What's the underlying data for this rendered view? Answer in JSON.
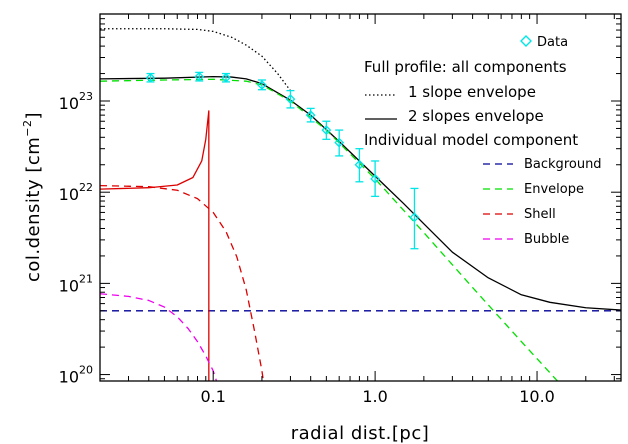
{
  "chart_data": {
    "type": "line",
    "xlabel": "radial dist.",
    "xlabel_unit": "[pc]",
    "ylabel": "col.density",
    "ylabel_unit": "[cm",
    "ylabel_unit_exp": "−2",
    "ylabel_unit_close": "]",
    "x_scale": "log",
    "y_scale": "log",
    "xlim": [
      0.02,
      33
    ],
    "ylim": [
      8.5e+19,
      9e+23
    ],
    "x_ticks": [
      {
        "value": 0.1,
        "label": "0.1"
      },
      {
        "value": 1.0,
        "label": "1.0"
      },
      {
        "value": 10.0,
        "label": "10.0"
      }
    ],
    "y_ticks": [
      {
        "value": 1e+20,
        "base": "10",
        "exp": "20"
      },
      {
        "value": 1e+21,
        "base": "10",
        "exp": "21"
      },
      {
        "value": 1e+22,
        "base": "10",
        "exp": "22"
      },
      {
        "value": 1e+23,
        "base": "10",
        "exp": "23"
      }
    ],
    "legend": {
      "placement": "top-right",
      "data_label": "Data",
      "full_profile_header": "Full profile: all components",
      "one_slope_label": "1 slope envelope",
      "two_slope_label": "2 slopes envelope",
      "components_header": "Individual model component",
      "background_label": "Background",
      "envelope_label": "Envelope",
      "shell_label": "Shell",
      "bubble_label": "Bubble"
    },
    "series": [
      {
        "name": "Data",
        "color": "#00e5e5",
        "marker": "diamond",
        "points": [
          {
            "x": 0.041,
            "y": 1.8e+23,
            "yerr_lo": 1.62e+23,
            "yerr_hi": 2e+23
          },
          {
            "x": 0.082,
            "y": 1.85e+23,
            "yerr_lo": 1.66e+23,
            "yerr_hi": 2.06e+23
          },
          {
            "x": 0.12,
            "y": 1.8e+23,
            "yerr_lo": 1.62e+23,
            "yerr_hi": 2e+23
          },
          {
            "x": 0.2,
            "y": 1.5e+23,
            "yerr_lo": 1.33e+23,
            "yerr_hi": 1.7e+23
          },
          {
            "x": 0.3,
            "y": 1.05e+23,
            "yerr_lo": 8.4e+22,
            "yerr_hi": 1.3e+23
          },
          {
            "x": 0.4,
            "y": 7e+22,
            "yerr_lo": 5.9e+22,
            "yerr_hi": 8.3e+22
          },
          {
            "x": 0.5,
            "y": 4.8e+22,
            "yerr_lo": 3.8e+22,
            "yerr_hi": 6e+22
          },
          {
            "x": 0.6,
            "y": 3.5e+22,
            "yerr_lo": 2.5e+22,
            "yerr_hi": 4.8e+22
          },
          {
            "x": 0.8,
            "y": 2e+22,
            "yerr_lo": 1.3e+22,
            "yerr_hi": 3e+22
          },
          {
            "x": 1.0,
            "y": 1.4e+22,
            "yerr_lo": 9e+21,
            "yerr_hi": 2.2e+22
          },
          {
            "x": 1.75,
            "y": 5.3e+21,
            "yerr_lo": 2.4e+21,
            "yerr_hi": 1.1e+22
          }
        ]
      },
      {
        "name": "1 slope envelope",
        "color": "#000000",
        "dash": "dotted",
        "points": [
          [
            0.02,
            6.2e+23
          ],
          [
            0.05,
            6.2e+23
          ],
          [
            0.08,
            6.1e+23
          ],
          [
            0.1,
            5.8e+23
          ],
          [
            0.13,
            5e+23
          ],
          [
            0.16,
            4.1e+23
          ],
          [
            0.2,
            3.1e+23
          ],
          [
            0.25,
            2e+23
          ],
          [
            0.3,
            1.3e+23
          ]
        ]
      },
      {
        "name": "2 slopes envelope",
        "color": "#000000",
        "dash": "solid",
        "points": [
          [
            0.02,
            1.75e+23
          ],
          [
            0.05,
            1.78e+23
          ],
          [
            0.1,
            1.85e+23
          ],
          [
            0.13,
            1.83e+23
          ],
          [
            0.16,
            1.75e+23
          ],
          [
            0.2,
            1.55e+23
          ],
          [
            0.3,
            1.02e+23
          ],
          [
            0.4,
            7e+22
          ],
          [
            0.6,
            3.6e+22
          ],
          [
            0.8,
            2.2e+22
          ],
          [
            1.0,
            1.5e+22
          ],
          [
            1.5,
            7.5e+21
          ],
          [
            2.0,
            4.5e+21
          ],
          [
            3.0,
            2.2e+21
          ],
          [
            5.0,
            1.15e+21
          ],
          [
            8.0,
            7.5e+20
          ],
          [
            12.0,
            6.2e+20
          ],
          [
            20.0,
            5.4e+20
          ],
          [
            33.0,
            5.1e+20
          ]
        ]
      },
      {
        "name": "Background",
        "color": "#000099",
        "dash": "dashed",
        "points": [
          [
            0.02,
            5e+20
          ],
          [
            33.0,
            5e+20
          ]
        ]
      },
      {
        "name": "Envelope",
        "color": "#00e000",
        "dash": "dashed",
        "points": [
          [
            0.02,
            1.65e+23
          ],
          [
            0.05,
            1.7e+23
          ],
          [
            0.1,
            1.73e+23
          ],
          [
            0.16,
            1.65e+23
          ],
          [
            0.2,
            1.5e+23
          ],
          [
            0.3,
            1e+23
          ],
          [
            0.5,
            4.8e+22
          ],
          [
            1.0,
            1.4e+22
          ],
          [
            2.0,
            3.6e+21
          ],
          [
            4.0,
            9e+20
          ],
          [
            8.0,
            2.3e+20
          ],
          [
            16.0,
            6e+19
          ]
        ]
      },
      {
        "name": "Shell",
        "color": "#dd0000",
        "dash": "dashed",
        "points": [
          [
            0.02,
            1.18e+22
          ],
          [
            0.04,
            1.15e+22
          ],
          [
            0.06,
            1.05e+22
          ],
          [
            0.08,
            8.5e+21
          ],
          [
            0.1,
            6e+21
          ],
          [
            0.12,
            3.7e+21
          ],
          [
            0.14,
            1.95e+21
          ],
          [
            0.16,
            8.5e+20
          ],
          [
            0.18,
            3e+20
          ],
          [
            0.2,
            1.1e+20
          ],
          [
            0.21,
            6e+19
          ]
        ]
      },
      {
        "name": "Shell (model peak)",
        "color": "#dd0000",
        "dash": "solid",
        "points": [
          [
            0.02,
            1.08e+22
          ],
          [
            0.04,
            1.12e+22
          ],
          [
            0.06,
            1.2e+22
          ],
          [
            0.075,
            1.45e+22
          ],
          [
            0.085,
            2.2e+22
          ],
          [
            0.09,
            3.8e+22
          ],
          [
            0.094,
            7.8e+22
          ],
          [
            0.094,
            6e+19
          ]
        ]
      },
      {
        "name": "Bubble",
        "color": "#ee00ee",
        "dash": "dashed",
        "points": [
          [
            0.02,
            7.7e+20
          ],
          [
            0.03,
            7.2e+20
          ],
          [
            0.04,
            6.5e+20
          ],
          [
            0.05,
            5.5e+20
          ],
          [
            0.06,
            4.3e+20
          ],
          [
            0.07,
            3.2e+20
          ],
          [
            0.08,
            2.3e+20
          ],
          [
            0.09,
            1.6e+20
          ],
          [
            0.1,
            1.1e+20
          ],
          [
            0.11,
            6.5e+19
          ]
        ]
      }
    ]
  }
}
